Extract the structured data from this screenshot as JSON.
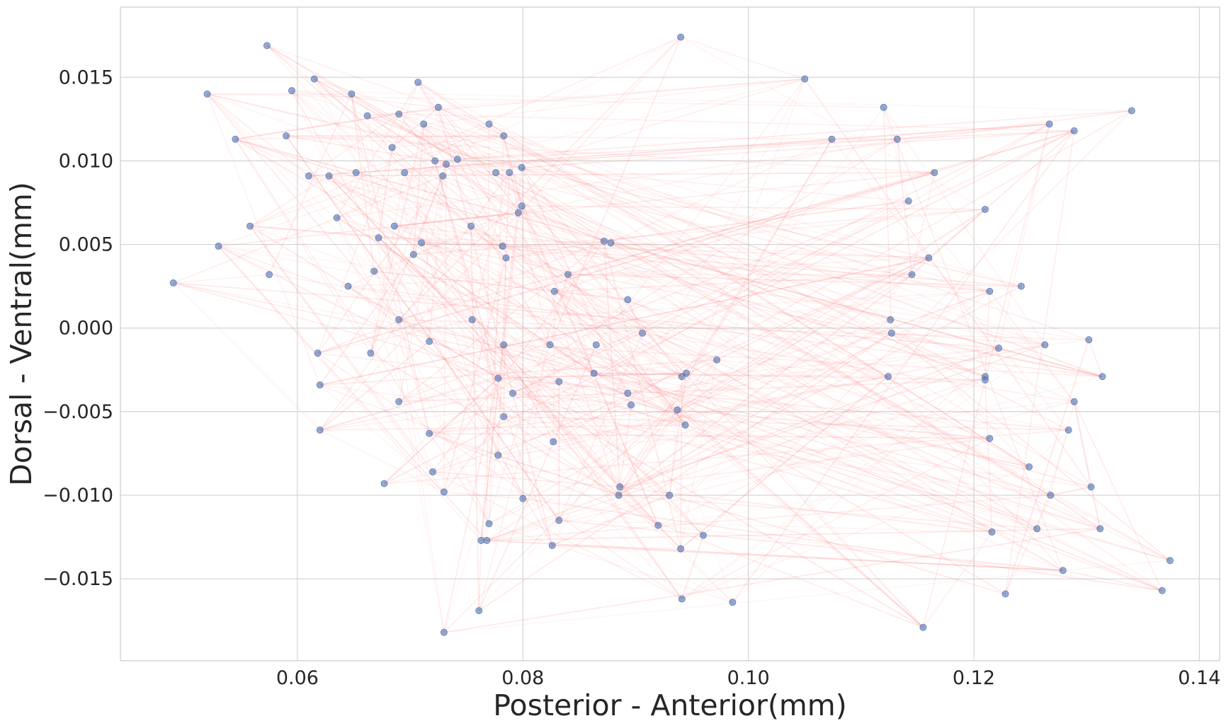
{
  "chart_data": {
    "type": "scatter",
    "title": "",
    "xlabel": "Posterior - Anterior(mm)",
    "ylabel": "Dorsal - Ventral(mm)",
    "xlim": [
      0.0443,
      0.1418
    ],
    "ylim": [
      -0.0199,
      0.0192
    ],
    "x_ticks": [
      0.06,
      0.08,
      0.1,
      0.12,
      0.14
    ],
    "x_tick_labels": [
      "0.06",
      "0.08",
      "0.10",
      "0.12",
      "0.14"
    ],
    "y_ticks": [
      0.015,
      0.01,
      0.005,
      0.0,
      -0.005,
      -0.01,
      -0.015
    ],
    "y_tick_labels": [
      "0.015",
      "0.010",
      "0.005",
      "0.000",
      "−0.005",
      "−0.010",
      "−0.015"
    ],
    "grid": true,
    "colors": {
      "point": "#4c72b0",
      "edge": "#ff7f7f",
      "grid": "#d4d4d4",
      "spine": "#cccccc",
      "text": "#262626"
    },
    "points": [
      {
        "x": 0.049,
        "y": 0.0027
      },
      {
        "x": 0.052,
        "y": 0.014
      },
      {
        "x": 0.053,
        "y": 0.0049
      },
      {
        "x": 0.0545,
        "y": 0.0113
      },
      {
        "x": 0.0558,
        "y": 0.0061
      },
      {
        "x": 0.0573,
        "y": 0.0169
      },
      {
        "x": 0.0575,
        "y": 0.0032
      },
      {
        "x": 0.059,
        "y": 0.0115
      },
      {
        "x": 0.0595,
        "y": 0.0142
      },
      {
        "x": 0.061,
        "y": 0.0091
      },
      {
        "x": 0.0615,
        "y": 0.0149
      },
      {
        "x": 0.0618,
        "y": -0.0015
      },
      {
        "x": 0.062,
        "y": -0.0034
      },
      {
        "x": 0.062,
        "y": -0.0061
      },
      {
        "x": 0.0628,
        "y": 0.0091
      },
      {
        "x": 0.0635,
        "y": 0.0066
      },
      {
        "x": 0.0645,
        "y": 0.0025
      },
      {
        "x": 0.0648,
        "y": 0.014
      },
      {
        "x": 0.0652,
        "y": 0.0093
      },
      {
        "x": 0.0662,
        "y": 0.0127
      },
      {
        "x": 0.0665,
        "y": -0.0015
      },
      {
        "x": 0.0668,
        "y": 0.0034
      },
      {
        "x": 0.0672,
        "y": 0.0054
      },
      {
        "x": 0.0677,
        "y": -0.0093
      },
      {
        "x": 0.0684,
        "y": 0.0108
      },
      {
        "x": 0.0686,
        "y": 0.0061
      },
      {
        "x": 0.069,
        "y": 0.0128
      },
      {
        "x": 0.069,
        "y": 0.0005
      },
      {
        "x": 0.069,
        "y": -0.0044
      },
      {
        "x": 0.0695,
        "y": 0.0093
      },
      {
        "x": 0.0703,
        "y": 0.0044
      },
      {
        "x": 0.0707,
        "y": 0.0147
      },
      {
        "x": 0.071,
        "y": 0.0051
      },
      {
        "x": 0.0712,
        "y": 0.0122
      },
      {
        "x": 0.0717,
        "y": -0.0008
      },
      {
        "x": 0.0717,
        "y": -0.0063
      },
      {
        "x": 0.072,
        "y": -0.0086
      },
      {
        "x": 0.0722,
        "y": 0.01
      },
      {
        "x": 0.0725,
        "y": 0.0132
      },
      {
        "x": 0.0729,
        "y": 0.0091
      },
      {
        "x": 0.073,
        "y": -0.0098
      },
      {
        "x": 0.073,
        "y": -0.0182
      },
      {
        "x": 0.0732,
        "y": 0.0098
      },
      {
        "x": 0.0742,
        "y": 0.0101
      },
      {
        "x": 0.0754,
        "y": 0.0061
      },
      {
        "x": 0.0755,
        "y": 0.0005
      },
      {
        "x": 0.0761,
        "y": -0.0169
      },
      {
        "x": 0.0763,
        "y": -0.0127
      },
      {
        "x": 0.0768,
        "y": -0.0127
      },
      {
        "x": 0.077,
        "y": -0.0117
      },
      {
        "x": 0.077,
        "y": 0.0122
      },
      {
        "x": 0.0776,
        "y": 0.0093
      },
      {
        "x": 0.0778,
        "y": -0.003
      },
      {
        "x": 0.0778,
        "y": -0.0076
      },
      {
        "x": 0.0783,
        "y": 0.0115
      },
      {
        "x": 0.0782,
        "y": 0.0049
      },
      {
        "x": 0.0783,
        "y": -0.001
      },
      {
        "x": 0.0783,
        "y": -0.0053
      },
      {
        "x": 0.0785,
        "y": 0.0042
      },
      {
        "x": 0.0788,
        "y": 0.0093
      },
      {
        "x": 0.0791,
        "y": -0.0039
      },
      {
        "x": 0.0796,
        "y": 0.0069
      },
      {
        "x": 0.0799,
        "y": 0.0073
      },
      {
        "x": 0.0799,
        "y": 0.0096
      },
      {
        "x": 0.08,
        "y": -0.0102
      },
      {
        "x": 0.0824,
        "y": -0.001
      },
      {
        "x": 0.0826,
        "y": -0.013
      },
      {
        "x": 0.0827,
        "y": -0.0068
      },
      {
        "x": 0.0828,
        "y": 0.0022
      },
      {
        "x": 0.0832,
        "y": -0.0032
      },
      {
        "x": 0.0832,
        "y": -0.0115
      },
      {
        "x": 0.084,
        "y": 0.0032
      },
      {
        "x": 0.0863,
        "y": -0.0027
      },
      {
        "x": 0.0865,
        "y": -0.001
      },
      {
        "x": 0.0872,
        "y": 0.0052
      },
      {
        "x": 0.0878,
        "y": 0.0051
      },
      {
        "x": 0.0885,
        "y": -0.01
      },
      {
        "x": 0.0886,
        "y": -0.0095
      },
      {
        "x": 0.0893,
        "y": 0.0017
      },
      {
        "x": 0.0893,
        "y": -0.0039
      },
      {
        "x": 0.0896,
        "y": -0.0046
      },
      {
        "x": 0.0906,
        "y": -0.0003
      },
      {
        "x": 0.092,
        "y": -0.0118
      },
      {
        "x": 0.093,
        "y": -0.01
      },
      {
        "x": 0.0937,
        "y": -0.0049
      },
      {
        "x": 0.094,
        "y": -0.0132
      },
      {
        "x": 0.094,
        "y": 0.0174
      },
      {
        "x": 0.0941,
        "y": -0.0162
      },
      {
        "x": 0.0941,
        "y": -0.0029
      },
      {
        "x": 0.0944,
        "y": -0.0058
      },
      {
        "x": 0.0945,
        "y": -0.0027
      },
      {
        "x": 0.096,
        "y": -0.0124
      },
      {
        "x": 0.0972,
        "y": -0.0019
      },
      {
        "x": 0.0986,
        "y": -0.0164
      },
      {
        "x": 0.105,
        "y": 0.0149
      },
      {
        "x": 0.1074,
        "y": 0.0113
      },
      {
        "x": 0.112,
        "y": 0.0132
      },
      {
        "x": 0.1124,
        "y": -0.0029
      },
      {
        "x": 0.1126,
        "y": 0.0005
      },
      {
        "x": 0.1127,
        "y": -0.0003
      },
      {
        "x": 0.1132,
        "y": 0.0113
      },
      {
        "x": 0.1142,
        "y": 0.0076
      },
      {
        "x": 0.1145,
        "y": 0.0032
      },
      {
        "x": 0.1155,
        "y": -0.0179
      },
      {
        "x": 0.116,
        "y": 0.0042
      },
      {
        "x": 0.1165,
        "y": 0.0093
      },
      {
        "x": 0.121,
        "y": 0.0071
      },
      {
        "x": 0.121,
        "y": -0.0029
      },
      {
        "x": 0.121,
        "y": -0.0031
      },
      {
        "x": 0.1214,
        "y": -0.0066
      },
      {
        "x": 0.1214,
        "y": 0.0022
      },
      {
        "x": 0.1216,
        "y": -0.0122
      },
      {
        "x": 0.1222,
        "y": -0.0012
      },
      {
        "x": 0.1228,
        "y": -0.0159
      },
      {
        "x": 0.1242,
        "y": 0.0025
      },
      {
        "x": 0.1249,
        "y": -0.0083
      },
      {
        "x": 0.1256,
        "y": -0.012
      },
      {
        "x": 0.1263,
        "y": -0.001
      },
      {
        "x": 0.1267,
        "y": 0.0122
      },
      {
        "x": 0.1268,
        "y": -0.01
      },
      {
        "x": 0.1279,
        "y": -0.0145
      },
      {
        "x": 0.1284,
        "y": -0.0061
      },
      {
        "x": 0.1289,
        "y": 0.0118
      },
      {
        "x": 0.1289,
        "y": -0.0044
      },
      {
        "x": 0.1302,
        "y": -0.0007
      },
      {
        "x": 0.1304,
        "y": -0.0095
      },
      {
        "x": 0.1312,
        "y": -0.012
      },
      {
        "x": 0.1314,
        "y": -0.0029
      },
      {
        "x": 0.134,
        "y": 0.013
      },
      {
        "x": 0.1367,
        "y": -0.0157
      },
      {
        "x": 0.1374,
        "y": -0.0139
      }
    ]
  }
}
